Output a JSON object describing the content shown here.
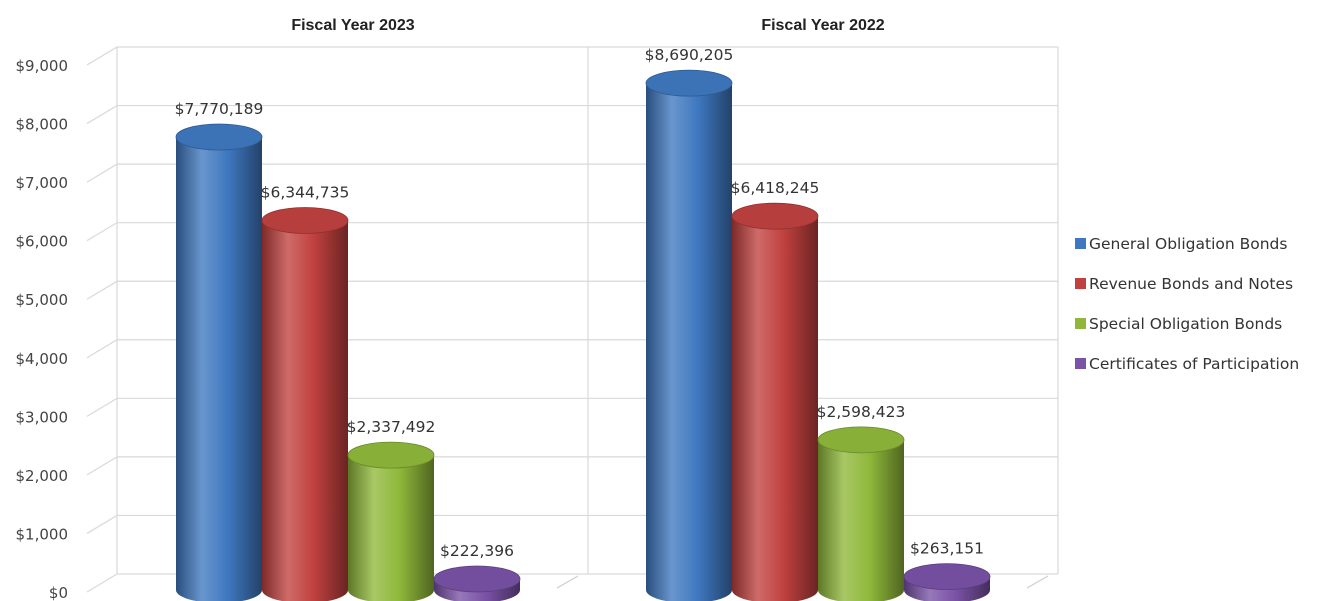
{
  "chart_data": {
    "type": "bar",
    "categories": [
      "Fiscal Year 2023",
      "Fiscal Year 2022"
    ],
    "series": [
      {
        "name": "General Obligation Bonds",
        "values": [
          7770.189,
          8690.205
        ],
        "labels": [
          "$7,770,189",
          "$8,690,205"
        ],
        "color": "#3f78c0"
      },
      {
        "name": "Revenue Bonds and Notes",
        "values": [
          6344.735,
          6418.245
        ],
        "labels": [
          "$6,344,735",
          "$6,418,245"
        ],
        "color": "#c0413f"
      },
      {
        "name": "Special Obligation Bonds",
        "values": [
          2337.492,
          2598.423
        ],
        "labels": [
          "$2,337,492",
          "$2,598,423"
        ],
        "color": "#8fb83a"
      },
      {
        "name": "Certificates of Participation",
        "values": [
          222.396,
          263.151
        ],
        "labels": [
          "$222,396",
          "$263,151"
        ],
        "color": "#7a52a6"
      }
    ],
    "yticks": [
      "$0",
      "$1,000",
      "$2,000",
      "$3,000",
      "$4,000",
      "$5,000",
      "$6,000",
      "$7,000",
      "$8,000",
      "$9,000"
    ],
    "ylim": [
      0,
      9000
    ],
    "grid": true,
    "legend": "right",
    "style": "3d-cylinder"
  }
}
